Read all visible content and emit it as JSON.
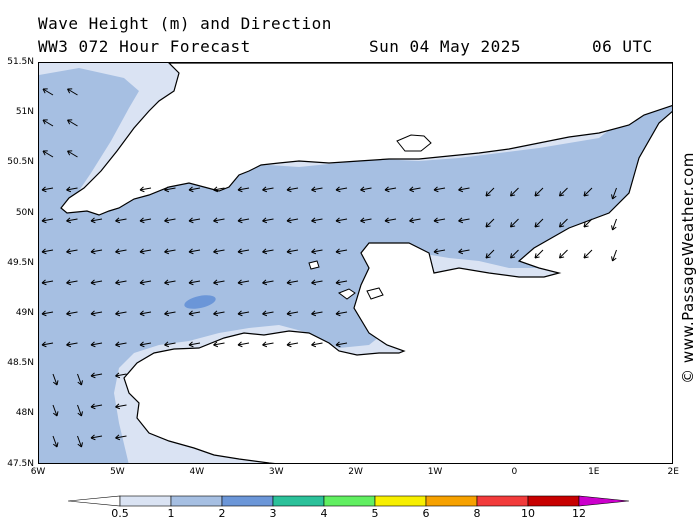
{
  "header": {
    "title": "Wave Height (m) and Direction",
    "model": "WW3 072 Hour Forecast",
    "date": "Sun 04 May 2025",
    "time": "06 UTC"
  },
  "watermark": "© www.PassageWeather.com",
  "map": {
    "lat_labels": [
      "51.5N",
      "51N",
      "50.5N",
      "50N",
      "49.5N",
      "49N",
      "48.5N",
      "48N",
      "47.5N"
    ],
    "lon_labels": [
      "6W",
      "5W",
      "4W",
      "3W",
      "2W",
      "1W",
      "0",
      "1E",
      "2E"
    ],
    "colors": {
      "land": "#ffffff",
      "coast": "#000000",
      "lt0_5": "#ffffff",
      "band_0_5_1": "#dae3f3",
      "band_1_2": "#a6bfe2",
      "band_2_3": "#6b96d8"
    },
    "arrow_direction": "waves travelling mainly toward the west/south-west in the Channel"
  },
  "legend": {
    "labels": [
      "0.5",
      "1",
      "2",
      "3",
      "4",
      "5",
      "6",
      "8",
      "10",
      "12"
    ],
    "colors": [
      "#dae3f3",
      "#a6bfe2",
      "#6b96d8",
      "#2cc19a",
      "#61ef61",
      "#f7ef00",
      "#f6a100",
      "#f23b3b",
      "#c70000",
      "#cc00cc"
    ]
  }
}
